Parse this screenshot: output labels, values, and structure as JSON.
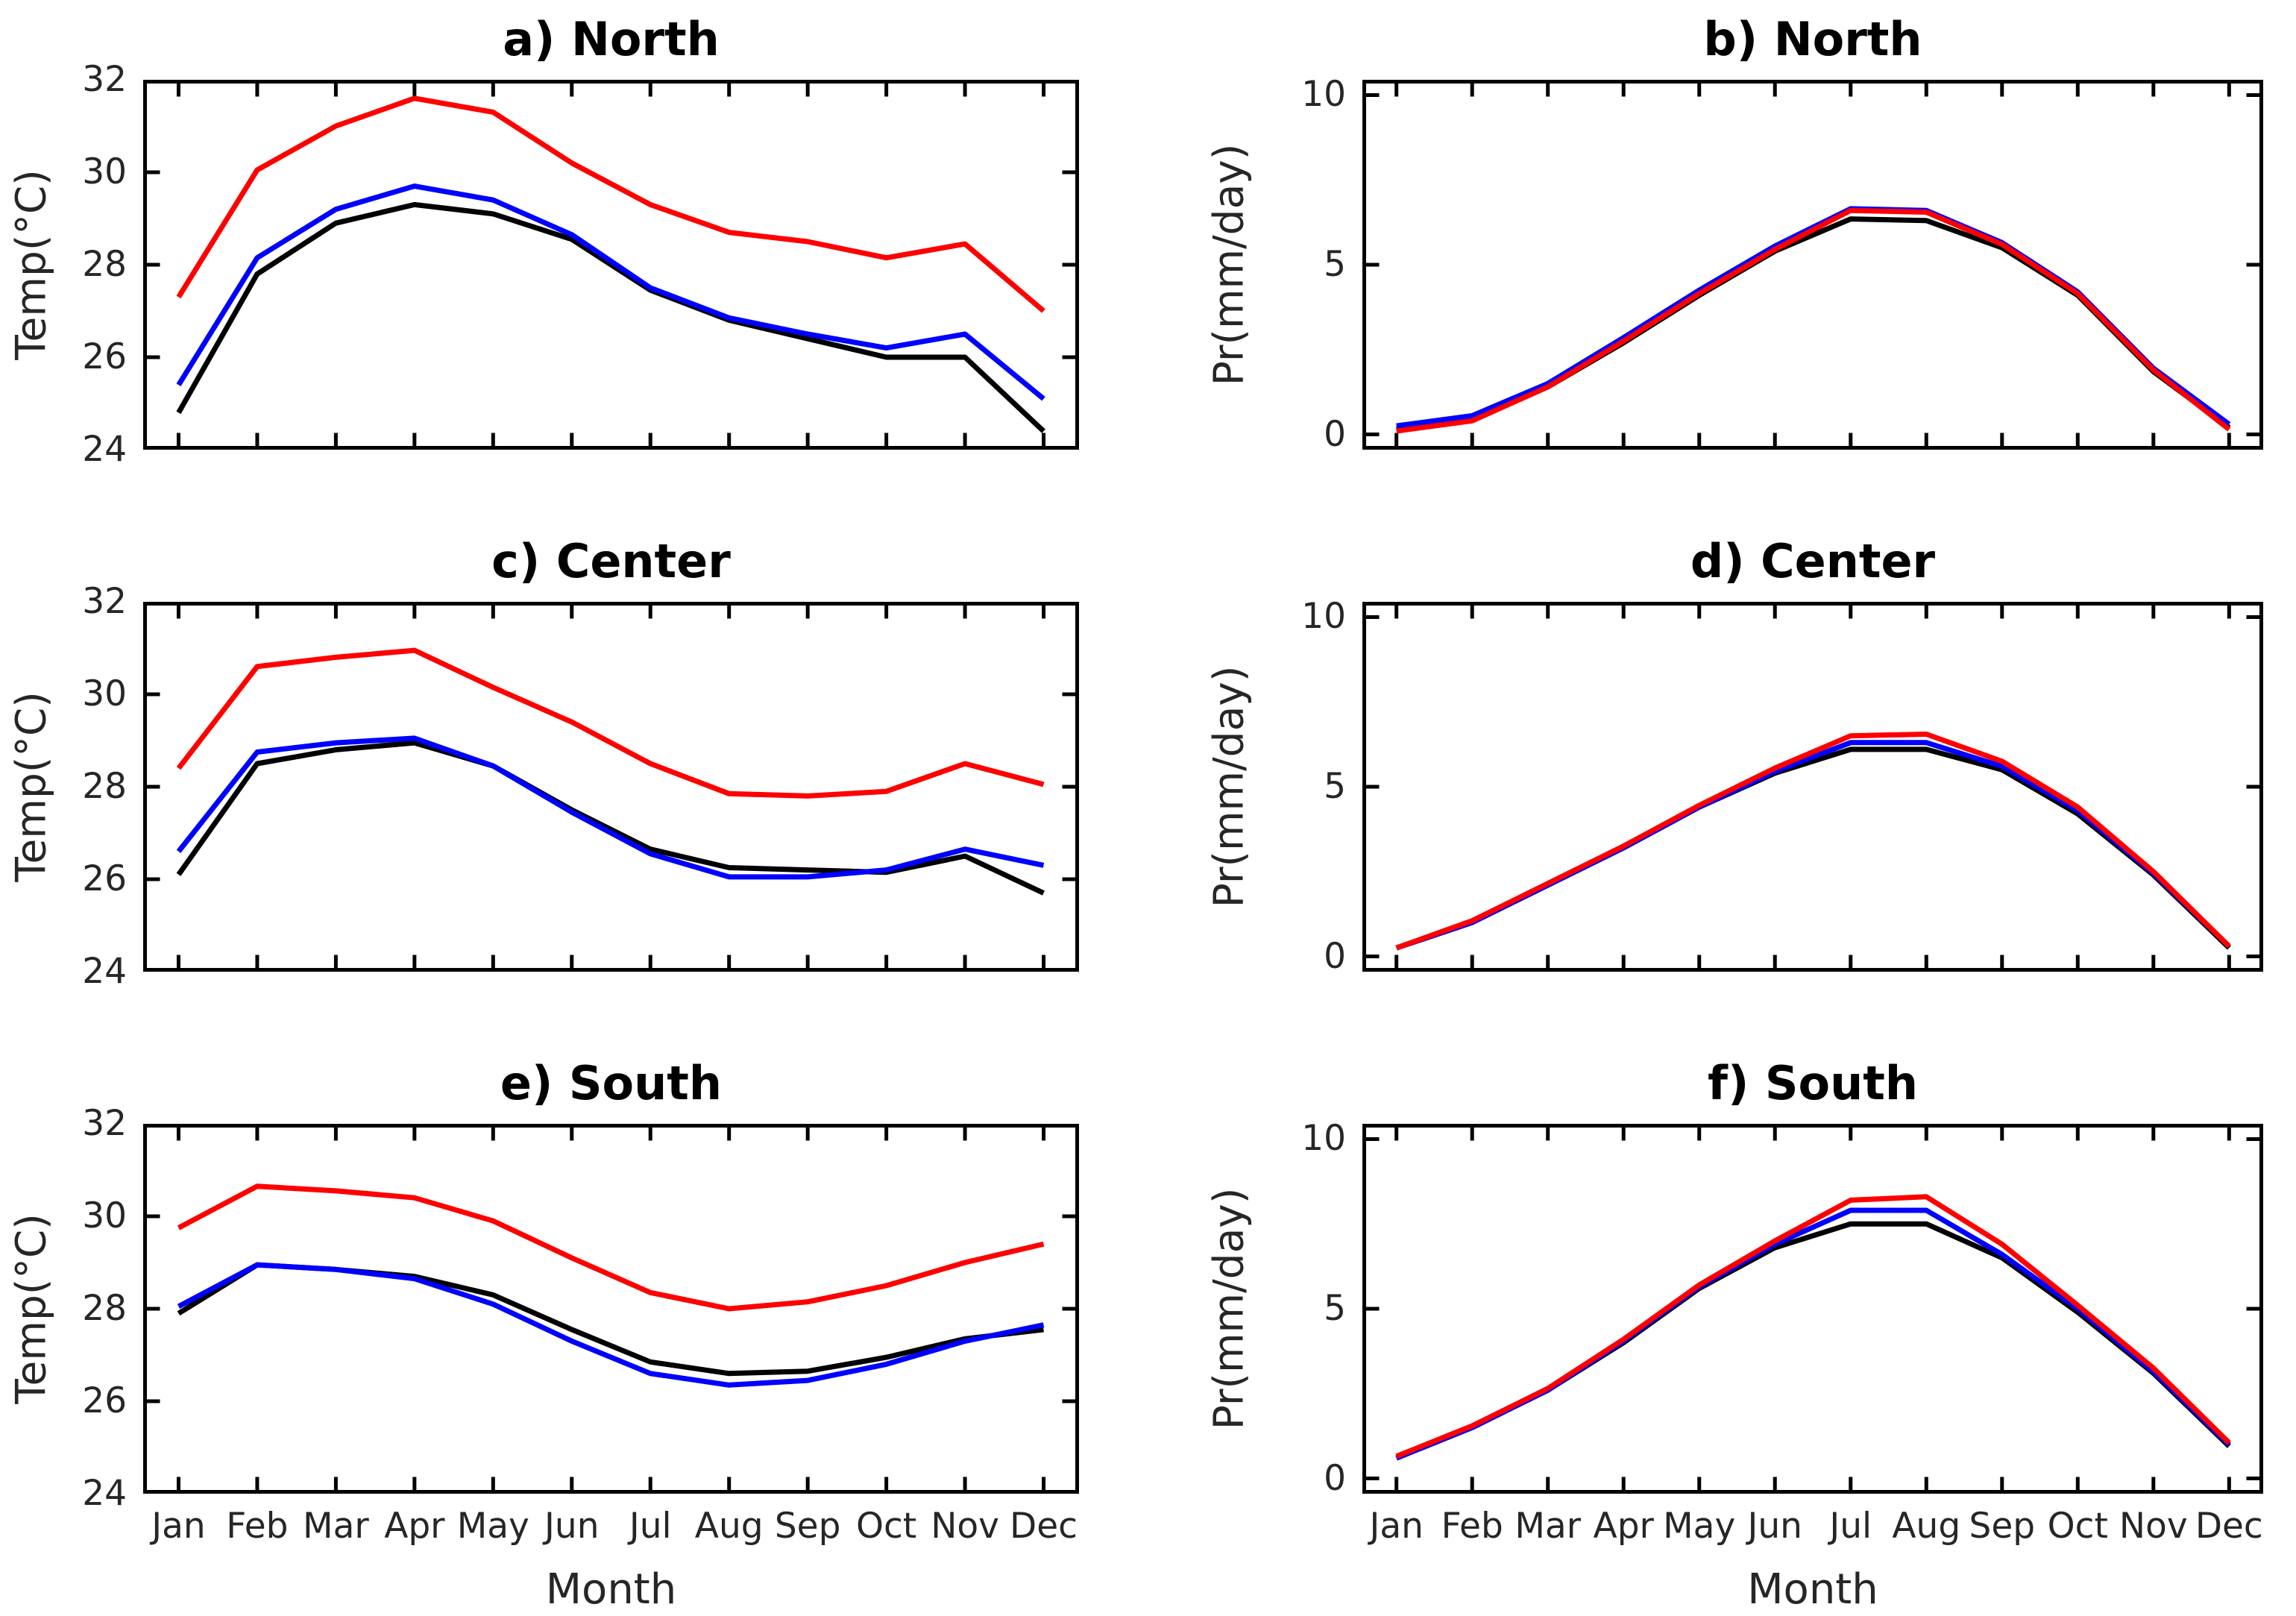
{
  "figure": {
    "background": "#ffffff",
    "series_colors": {
      "black": "#000000",
      "blue": "#0000ff",
      "red": "#ff0000"
    }
  },
  "months": [
    "Jan",
    "Feb",
    "Mar",
    "Apr",
    "May",
    "Jun",
    "Jul",
    "Aug",
    "Sep",
    "Oct",
    "Nov",
    "Dec"
  ],
  "chart_data": [
    {
      "id": "a",
      "type": "line",
      "title": "a) North",
      "ylabel": "Temp(°C)",
      "categories": [
        "Jan",
        "Feb",
        "Mar",
        "Apr",
        "May",
        "Jun",
        "Jul",
        "Aug",
        "Sep",
        "Oct",
        "Nov",
        "Dec"
      ],
      "ylim": [
        24,
        32
      ],
      "yticks": [
        24,
        26,
        28,
        30,
        32
      ],
      "grid": false,
      "legend": "none",
      "series": [
        {
          "name": "black",
          "color": "#000000",
          "values": [
            24.8,
            27.8,
            28.9,
            29.3,
            29.1,
            28.55,
            27.45,
            26.8,
            26.4,
            26.0,
            26.0,
            24.4
          ]
        },
        {
          "name": "blue",
          "color": "#0000ff",
          "values": [
            25.4,
            28.15,
            29.2,
            29.7,
            29.4,
            28.65,
            27.5,
            26.85,
            26.5,
            26.2,
            26.5,
            25.1
          ]
        },
        {
          "name": "red",
          "color": "#ff0000",
          "values": [
            27.3,
            30.05,
            31.0,
            31.6,
            31.3,
            30.2,
            29.3,
            28.7,
            28.5,
            28.15,
            28.45,
            27.0
          ]
        }
      ]
    },
    {
      "id": "b",
      "type": "line",
      "title": "b) North",
      "ylabel": "Pr(mm/day)",
      "categories": [
        "Jan",
        "Feb",
        "Mar",
        "Apr",
        "May",
        "Jun",
        "Jul",
        "Aug",
        "Sep",
        "Oct",
        "Nov",
        "Dec"
      ],
      "ylim": [
        0,
        10
      ],
      "yticks": [
        0,
        5,
        10
      ],
      "grid": false,
      "legend": "none",
      "series": [
        {
          "name": "black",
          "color": "#000000",
          "values": [
            0.15,
            0.45,
            1.4,
            2.7,
            4.1,
            5.4,
            6.35,
            6.3,
            5.5,
            4.1,
            1.85,
            0.2
          ]
        },
        {
          "name": "blue",
          "color": "#0000ff",
          "values": [
            0.25,
            0.55,
            1.5,
            2.85,
            4.25,
            5.55,
            6.65,
            6.6,
            5.65,
            4.2,
            1.95,
            0.3
          ]
        },
        {
          "name": "red",
          "color": "#ff0000",
          "values": [
            0.1,
            0.4,
            1.4,
            2.75,
            4.15,
            5.45,
            6.6,
            6.55,
            5.6,
            4.15,
            1.9,
            0.15
          ]
        }
      ]
    },
    {
      "id": "c",
      "type": "line",
      "title": "c) Center",
      "ylabel": "Temp(°C)",
      "categories": [
        "Jan",
        "Feb",
        "Mar",
        "Apr",
        "May",
        "Jun",
        "Jul",
        "Aug",
        "Sep",
        "Oct",
        "Nov",
        "Dec"
      ],
      "ylim": [
        24,
        32
      ],
      "yticks": [
        24,
        26,
        28,
        30,
        32
      ],
      "grid": false,
      "legend": "none",
      "series": [
        {
          "name": "black",
          "color": "#000000",
          "values": [
            26.1,
            28.5,
            28.8,
            28.95,
            28.45,
            27.5,
            26.65,
            26.25,
            26.2,
            26.15,
            26.5,
            25.7
          ]
        },
        {
          "name": "blue",
          "color": "#0000ff",
          "values": [
            26.6,
            28.75,
            28.95,
            29.05,
            28.45,
            27.45,
            26.55,
            26.05,
            26.05,
            26.2,
            26.65,
            26.3
          ]
        },
        {
          "name": "red",
          "color": "#ff0000",
          "values": [
            28.4,
            30.6,
            30.8,
            30.95,
            30.15,
            29.4,
            28.5,
            27.85,
            27.8,
            27.9,
            28.5,
            28.05
          ]
        }
      ]
    },
    {
      "id": "d",
      "type": "line",
      "title": "d) Center",
      "ylabel": "Pr(mm/day)",
      "categories": [
        "Jan",
        "Feb",
        "Mar",
        "Apr",
        "May",
        "Jun",
        "Jul",
        "Aug",
        "Sep",
        "Oct",
        "Nov",
        "Dec"
      ],
      "ylim": [
        0,
        10
      ],
      "yticks": [
        0,
        5,
        10
      ],
      "grid": false,
      "legend": "none",
      "series": [
        {
          "name": "black",
          "color": "#000000",
          "values": [
            0.25,
            1.0,
            2.1,
            3.2,
            4.4,
            5.4,
            6.1,
            6.1,
            5.5,
            4.2,
            2.4,
            0.25
          ]
        },
        {
          "name": "blue",
          "color": "#0000ff",
          "values": [
            0.25,
            1.0,
            2.1,
            3.2,
            4.4,
            5.45,
            6.3,
            6.3,
            5.6,
            4.3,
            2.45,
            0.3
          ]
        },
        {
          "name": "red",
          "color": "#ff0000",
          "values": [
            0.25,
            1.05,
            2.15,
            3.25,
            4.45,
            5.55,
            6.5,
            6.55,
            5.75,
            4.4,
            2.5,
            0.3
          ]
        }
      ]
    },
    {
      "id": "e",
      "type": "line",
      "title": "e) South",
      "ylabel": "Temp(°C)",
      "xlabel": "Month",
      "categories": [
        "Jan",
        "Feb",
        "Mar",
        "Apr",
        "May",
        "Jun",
        "Jul",
        "Aug",
        "Sep",
        "Oct",
        "Nov",
        "Dec"
      ],
      "ylim": [
        24,
        32
      ],
      "yticks": [
        24,
        26,
        28,
        30,
        32
      ],
      "grid": false,
      "legend": "none",
      "series": [
        {
          "name": "black",
          "color": "#000000",
          "values": [
            27.9,
            28.95,
            28.85,
            28.7,
            28.3,
            27.55,
            26.85,
            26.6,
            26.65,
            26.95,
            27.35,
            27.55
          ]
        },
        {
          "name": "blue",
          "color": "#0000ff",
          "values": [
            28.05,
            28.95,
            28.85,
            28.65,
            28.1,
            27.3,
            26.6,
            26.35,
            26.45,
            26.8,
            27.3,
            27.65
          ]
        },
        {
          "name": "red",
          "color": "#ff0000",
          "values": [
            29.75,
            30.65,
            30.55,
            30.4,
            29.9,
            29.1,
            28.35,
            28.0,
            28.15,
            28.5,
            29.0,
            29.4
          ]
        }
      ]
    },
    {
      "id": "f",
      "type": "line",
      "title": "f) South",
      "ylabel": "Pr(mm/day)",
      "xlabel": "Month",
      "categories": [
        "Jan",
        "Feb",
        "Mar",
        "Apr",
        "May",
        "Jun",
        "Jul",
        "Aug",
        "Sep",
        "Oct",
        "Nov",
        "Dec"
      ],
      "ylim": [
        0,
        10
      ],
      "yticks": [
        0,
        5,
        10
      ],
      "grid": false,
      "legend": "none",
      "series": [
        {
          "name": "black",
          "color": "#000000",
          "values": [
            0.6,
            1.5,
            2.6,
            4.0,
            5.6,
            6.8,
            7.5,
            7.5,
            6.5,
            4.9,
            3.1,
            0.95
          ]
        },
        {
          "name": "blue",
          "color": "#0000ff",
          "values": [
            0.6,
            1.5,
            2.6,
            4.05,
            5.65,
            6.9,
            7.9,
            7.9,
            6.6,
            5.0,
            3.15,
            1.0
          ]
        },
        {
          "name": "red",
          "color": "#ff0000",
          "values": [
            0.65,
            1.55,
            2.65,
            4.1,
            5.7,
            7.0,
            8.2,
            8.3,
            6.9,
            5.1,
            3.25,
            1.05
          ]
        }
      ]
    }
  ]
}
